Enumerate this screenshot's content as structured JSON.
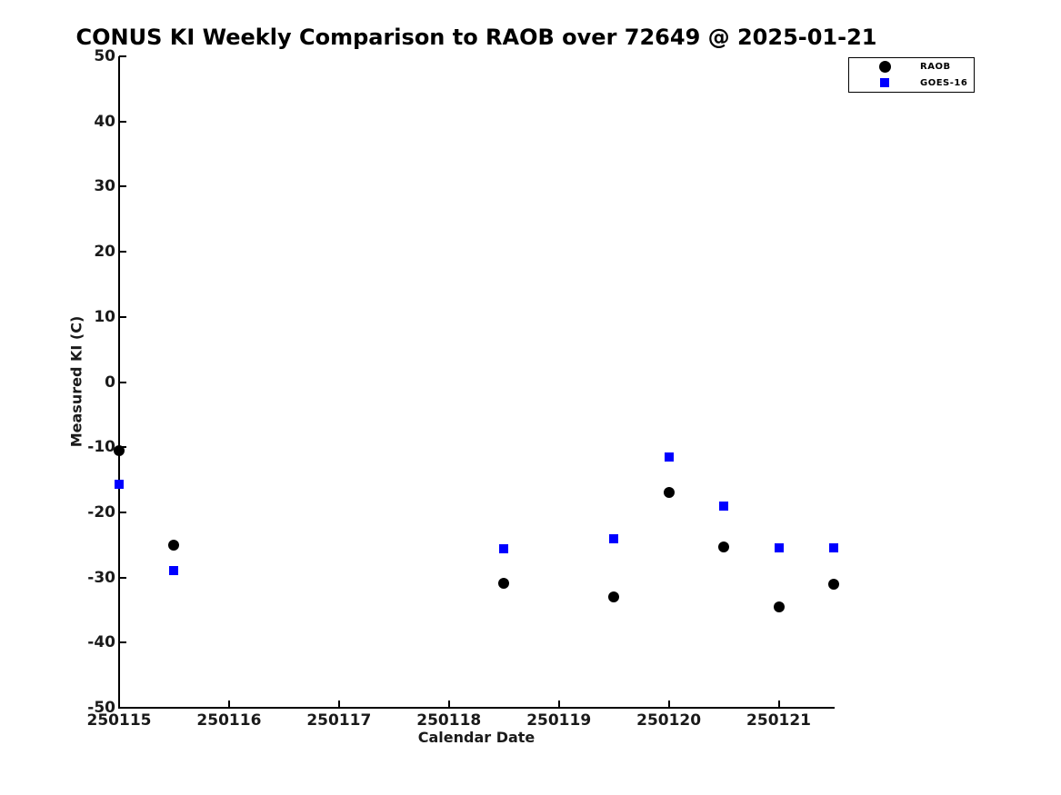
{
  "chart_data": {
    "type": "scatter",
    "title": "CONUS KI Weekly Comparison to RAOB over 72649 @ 2025-01-21",
    "xlabel": "Calendar Date",
    "ylabel": "Measured KI (C)",
    "xlim": [
      250115,
      250121.5
    ],
    "ylim": [
      -50,
      50
    ],
    "x_ticks": [
      250115,
      250116,
      250117,
      250118,
      250119,
      250120,
      250121
    ],
    "y_ticks": [
      -50,
      -40,
      -30,
      -20,
      -10,
      0,
      10,
      20,
      30,
      40,
      50
    ],
    "grid": false,
    "legend_position": "upper-right-outside-axes",
    "x": [
      250115,
      250115.5,
      250118.5,
      250119.5,
      250120,
      250120.5,
      250121,
      250121.5
    ],
    "series": [
      {
        "name": "RAOB",
        "marker": "circle",
        "color": "#000000",
        "values": [
          -10.5,
          -25.0,
          -30.9,
          -33.0,
          -17.0,
          -25.3,
          -34.5,
          -31.0
        ]
      },
      {
        "name": "GOES-16",
        "marker": "square",
        "color": "#0000ff",
        "values": [
          -15.7,
          -28.9,
          -25.6,
          -24.1,
          -11.5,
          -19.1,
          -25.4,
          -25.5
        ]
      }
    ]
  }
}
